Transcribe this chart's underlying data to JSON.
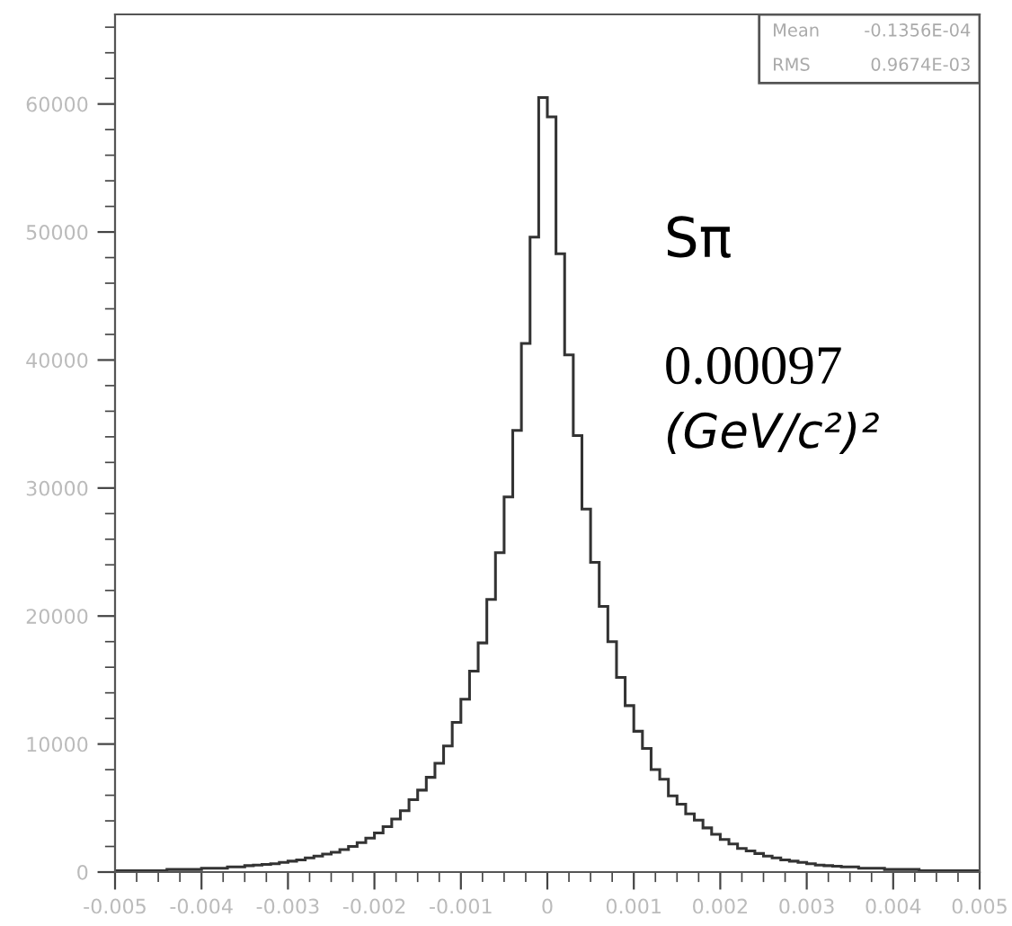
{
  "chart_data": {
    "type": "histogram",
    "bins": [
      -0.005,
      -0.0049,
      -0.0048,
      -0.0047,
      -0.0046,
      -0.0045,
      -0.0044,
      -0.0043,
      -0.0042,
      -0.0041,
      -0.004,
      -0.0039,
      -0.0038,
      -0.0037,
      -0.0036,
      -0.0035,
      -0.0034,
      -0.0033,
      -0.0032,
      -0.0031,
      -0.003,
      -0.0029,
      -0.0028,
      -0.0027,
      -0.0026,
      -0.0025,
      -0.0024,
      -0.0023,
      -0.0022,
      -0.0021,
      -0.002,
      -0.0019,
      -0.0018,
      -0.0017,
      -0.0016,
      -0.0015,
      -0.0014,
      -0.0013,
      -0.0012,
      -0.0011,
      -0.001,
      -0.0009,
      -0.0008,
      -0.0007,
      -0.0006,
      -0.0005,
      -0.0004,
      -0.0003,
      -0.0002,
      -0.0001,
      0,
      0.0001,
      0.0002,
      0.0003,
      0.0004,
      0.0005,
      0.0006,
      0.0007,
      0.0008,
      0.0009,
      0.001,
      0.0011,
      0.0012,
      0.0013,
      0.0014,
      0.0015,
      0.0016,
      0.0017,
      0.0018,
      0.0019,
      0.002,
      0.0021,
      0.0022,
      0.0023,
      0.0024,
      0.0025,
      0.0026,
      0.0027,
      0.0028,
      0.0029,
      0.003,
      0.0031,
      0.0032,
      0.0033,
      0.0034,
      0.0035,
      0.0036,
      0.0037,
      0.0038,
      0.0039,
      0.004,
      0.0041,
      0.0042,
      0.0043,
      0.0044,
      0.0045,
      0.0046,
      0.0047,
      0.0048,
      0.0049,
      0.005
    ],
    "values": [
      100,
      100,
      100,
      100,
      100,
      100,
      200,
      200,
      200,
      200,
      300,
      300,
      300,
      400,
      400,
      500,
      550,
      600,
      650,
      750,
      850,
      950,
      1100,
      1250,
      1400,
      1550,
      1750,
      2000,
      2300,
      2650,
      3050,
      3550,
      4150,
      4800,
      5650,
      6400,
      7400,
      8500,
      9850,
      11700,
      13500,
      15700,
      17900,
      21300,
      24950,
      29300,
      34500,
      41300,
      49600,
      60500,
      59000,
      48300,
      40400,
      34100,
      28350,
      24200,
      20750,
      18000,
      15200,
      13000,
      11000,
      9650,
      8000,
      7250,
      5950,
      5300,
      4550,
      4050,
      3450,
      2950,
      2550,
      2200,
      1850,
      1650,
      1450,
      1250,
      1100,
      950,
      850,
      750,
      650,
      550,
      500,
      450,
      400,
      400,
      300,
      300,
      300,
      200,
      200,
      200,
      200,
      100,
      100,
      100,
      100,
      100,
      100,
      100
    ],
    "color": "#333333",
    "xlim": [
      -0.005,
      0.005
    ],
    "xticks": [
      -0.005,
      -0.004,
      -0.003,
      -0.002,
      -0.001,
      0,
      0.001,
      0.002,
      0.003,
      0.004,
      0.005
    ],
    "ylim": [
      0,
      67000
    ],
    "yticks": [
      0,
      10000,
      20000,
      30000,
      40000,
      50000,
      60000
    ],
    "grid": false,
    "annotations": [
      "Mean",
      "-0.1356E-04",
      "RMS",
      "0.9674E-03",
      "Sπ",
      "0.00097",
      "(GeV/c²)²"
    ]
  }
}
